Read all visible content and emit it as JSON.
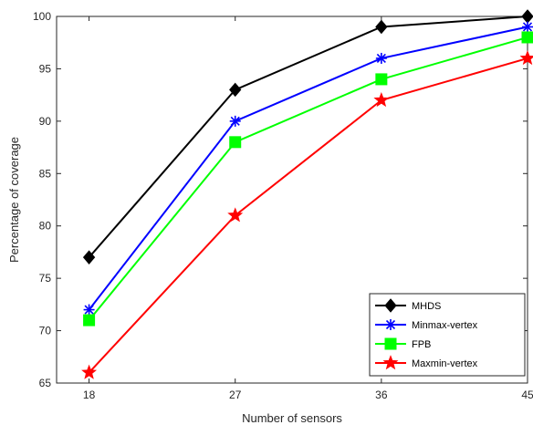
{
  "chart_data": {
    "type": "line",
    "x": [
      18,
      27,
      36,
      45
    ],
    "xticks": [
      "18",
      "27",
      "36",
      "45"
    ],
    "xlim": [
      16,
      45
    ],
    "ylim": [
      65,
      100
    ],
    "yticks": [
      "65",
      "70",
      "75",
      "80",
      "85",
      "90",
      "95",
      "100"
    ],
    "xlabel": "Number of sensors",
    "ylabel": "Percentage of coverage",
    "grid": false,
    "legend_position": "bottom-right",
    "series": [
      {
        "name": "MHDS",
        "values": [
          77,
          93,
          99,
          100
        ],
        "color": "#000000",
        "marker": "diamond"
      },
      {
        "name": "Minmax-vertex",
        "values": [
          72,
          90,
          96,
          99
        ],
        "color": "#0000ff",
        "marker": "asterisk"
      },
      {
        "name": "FPB",
        "values": [
          71,
          88,
          94,
          98
        ],
        "color": "#00ff00",
        "marker": "square"
      },
      {
        "name": "Maxmin-vertex",
        "values": [
          66,
          81,
          92,
          96
        ],
        "color": "#ff0000",
        "marker": "star"
      }
    ]
  }
}
